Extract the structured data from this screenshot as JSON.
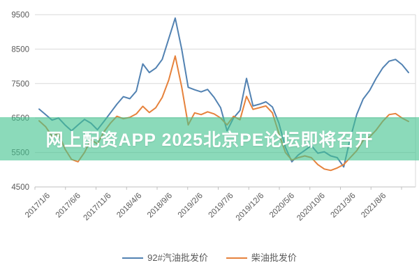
{
  "banner": {
    "text": "网上配资APP 2025北京PE论坛即将召开",
    "bg_color": "rgba(67,195,143,0.62)",
    "text_color": "#ffffff"
  },
  "chart_data": {
    "type": "line",
    "title": "",
    "xlabel": "",
    "ylabel": "",
    "ylim": [
      4500,
      9500
    ],
    "yticks": [
      4500,
      5500,
      6500,
      7500,
      8500,
      9500
    ],
    "grid": true,
    "legend_position": "bottom",
    "x_axis_labels": [
      "2017/1/6",
      "2017/6/6",
      "2017/11/6",
      "2018/4/6",
      "2018/9/6",
      "2019/2/6",
      "2019/7/6",
      "2019/12/6",
      "2020/5/6",
      "2020/10/6",
      "2021/3/6",
      "2021/8/6"
    ],
    "x_months": [
      "2017/1",
      "2017/2",
      "2017/3",
      "2017/4",
      "2017/5",
      "2017/6",
      "2017/7",
      "2017/8",
      "2017/9",
      "2017/10",
      "2017/11",
      "2017/12",
      "2018/1",
      "2018/2",
      "2018/3",
      "2018/4",
      "2018/5",
      "2018/6",
      "2018/7",
      "2018/8",
      "2018/9",
      "2018/10",
      "2018/11",
      "2018/12",
      "2019/1",
      "2019/2",
      "2019/3",
      "2019/4",
      "2019/5",
      "2019/6",
      "2019/7",
      "2019/8",
      "2019/9",
      "2019/10",
      "2019/11",
      "2019/12",
      "2020/1",
      "2020/2",
      "2020/3",
      "2020/4",
      "2020/5",
      "2020/6",
      "2020/7",
      "2020/8",
      "2020/9",
      "2020/10",
      "2020/11",
      "2020/12",
      "2021/1",
      "2021/2",
      "2021/3",
      "2021/4",
      "2021/5",
      "2021/6",
      "2021/7",
      "2021/8",
      "2021/9",
      "2021/10"
    ],
    "series": [
      {
        "name": "92#汽油批发价",
        "color": "#5282B2",
        "values": [
          6760,
          6600,
          6440,
          6500,
          6300,
          6130,
          6300,
          6460,
          6350,
          6160,
          6400,
          6650,
          6900,
          7120,
          7060,
          7280,
          8070,
          7820,
          7950,
          8200,
          8800,
          9400,
          8500,
          7390,
          7320,
          7260,
          7330,
          7100,
          6800,
          6130,
          6500,
          6720,
          7650,
          6850,
          6900,
          6970,
          6820,
          6350,
          5650,
          5230,
          5430,
          5560,
          5700,
          5480,
          5520,
          5400,
          5350,
          5080,
          5900,
          6600,
          7050,
          7300,
          7650,
          7950,
          8150,
          8200,
          8050,
          7820
        ]
      },
      {
        "name": "柴油批发价",
        "color": "#E6823C",
        "values": [
          6420,
          6250,
          5970,
          6050,
          5600,
          5300,
          5230,
          5500,
          5870,
          5750,
          6100,
          6350,
          6550,
          6480,
          6520,
          6620,
          6840,
          6660,
          6800,
          7100,
          7600,
          8300,
          7400,
          6300,
          6650,
          6600,
          6680,
          6620,
          6500,
          6300,
          6550,
          6450,
          7130,
          6750,
          6800,
          6850,
          6650,
          6050,
          5500,
          5280,
          5350,
          5400,
          5350,
          5150,
          5020,
          4980,
          5050,
          5150,
          5350,
          5550,
          5850,
          5950,
          6150,
          6400,
          6600,
          6630,
          6500,
          6400
        ]
      }
    ],
    "axis_colors": {
      "grid": "#DADADA",
      "axis": "#BFBFBF",
      "tick_label": "#595959"
    }
  }
}
